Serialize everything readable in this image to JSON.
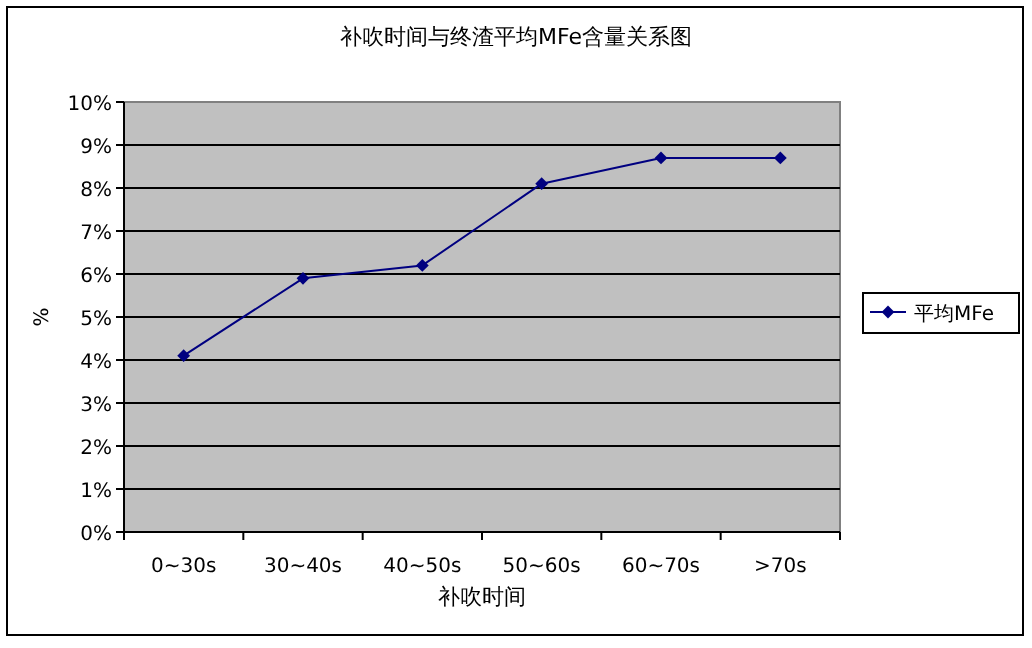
{
  "chart_data": {
    "type": "line",
    "title": "补吹时间与终渣平均MFe含量关系图",
    "xlabel": "补吹时间",
    "ylabel": "%",
    "categories": [
      "0~30s",
      "30~40s",
      "40~50s",
      "50~60s",
      "60~70s",
      ">70s"
    ],
    "series": [
      {
        "name": "平均MFe",
        "color": "#000080",
        "values": [
          4.1,
          5.9,
          6.2,
          8.1,
          8.7,
          8.7
        ]
      }
    ],
    "ylim": [
      0,
      10
    ],
    "yticks": [
      {
        "value": 0,
        "label": "0%"
      },
      {
        "value": 1,
        "label": "1%"
      },
      {
        "value": 2,
        "label": "2%"
      },
      {
        "value": 3,
        "label": "3%"
      },
      {
        "value": 4,
        "label": "4%"
      },
      {
        "value": 5,
        "label": "5%"
      },
      {
        "value": 6,
        "label": "6%"
      },
      {
        "value": 7,
        "label": "7%"
      },
      {
        "value": 8,
        "label": "8%"
      },
      {
        "value": 9,
        "label": "9%"
      },
      {
        "value": 10,
        "label": "10%"
      }
    ],
    "grid": "y",
    "legend": "right",
    "marker": "diamond",
    "line_style": "solid"
  }
}
